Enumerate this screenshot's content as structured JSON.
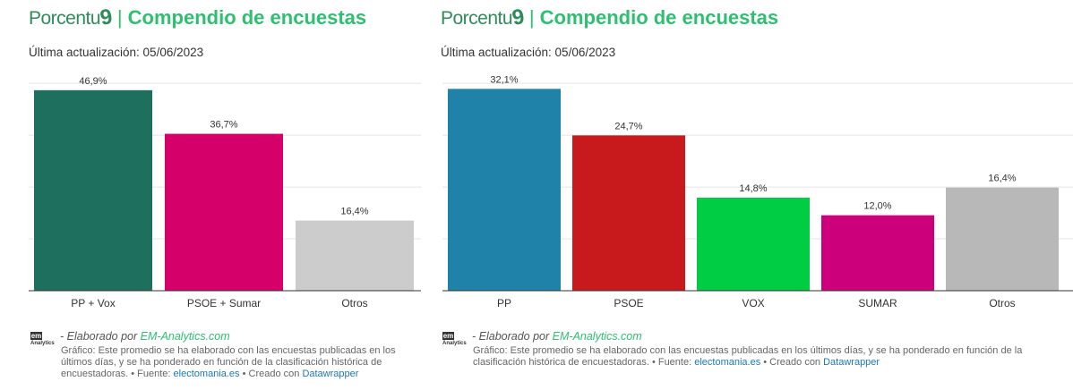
{
  "panels": [
    {
      "logo_text": "Porcentu",
      "logo_suffix": "9",
      "separator": "|",
      "title": "Compendio de encuestas",
      "updated": "Última actualización: 05/06/2023",
      "footer": {
        "em_logo": "em",
        "em_sub": "Analytics",
        "by_text": "- Elaborado por ",
        "by_link": "EM-Analytics.com",
        "note": "Gráfico: Este promedio se ha elaborado con las encuestas publicadas en los últimos días, y se ha ponderado en función de la clasificación histórica de encuestadoras. • Fuente: ",
        "source_link": "electomania.es",
        "created_text": " • Creado con ",
        "created_link": "Datawrapper"
      }
    },
    {
      "logo_text": "Porcentu",
      "logo_suffix": "9",
      "separator": "|",
      "title": "Compendio de encuestas",
      "updated": "Última actualización: 05/06/2023",
      "footer": {
        "em_logo": "em",
        "em_sub": "Analytics",
        "by_text": "- Elaborado por ",
        "by_link": "EM-Analytics.com",
        "note": "Gráfico: Este promedio se ha elaborado con las encuestas publicadas en los últimos días, y se ha ponderado en función de la clasificación histórica de encuestadoras. • Fuente: ",
        "source_link": "electomania.es",
        "created_text": " • Creado con ",
        "created_link": "Datawrapper"
      }
    }
  ],
  "chart_data": [
    {
      "type": "bar",
      "categories": [
        "PP + Vox",
        "PSOE + Sumar",
        "Otros"
      ],
      "values": [
        46.9,
        36.7,
        16.4
      ],
      "value_labels": [
        "46,9%",
        "36,7%",
        "16,4%"
      ],
      "colors": [
        "#1f6f5f",
        "#d6006b",
        "#cccccc"
      ],
      "ylim": [
        0,
        50
      ],
      "grid": true
    },
    {
      "type": "bar",
      "categories": [
        "PP",
        "PSOE",
        "VOX",
        "SUMAR",
        "Otros"
      ],
      "values": [
        32.1,
        24.7,
        14.8,
        12.0,
        16.4
      ],
      "value_labels": [
        "32,1%",
        "24,7%",
        "14,8%",
        "12,0%",
        "16,4%"
      ],
      "colors": [
        "#1f82a8",
        "#c8191c",
        "#00cc44",
        "#cc007a",
        "#b8b8b8"
      ],
      "ylim": [
        0,
        34
      ],
      "grid": true
    }
  ]
}
